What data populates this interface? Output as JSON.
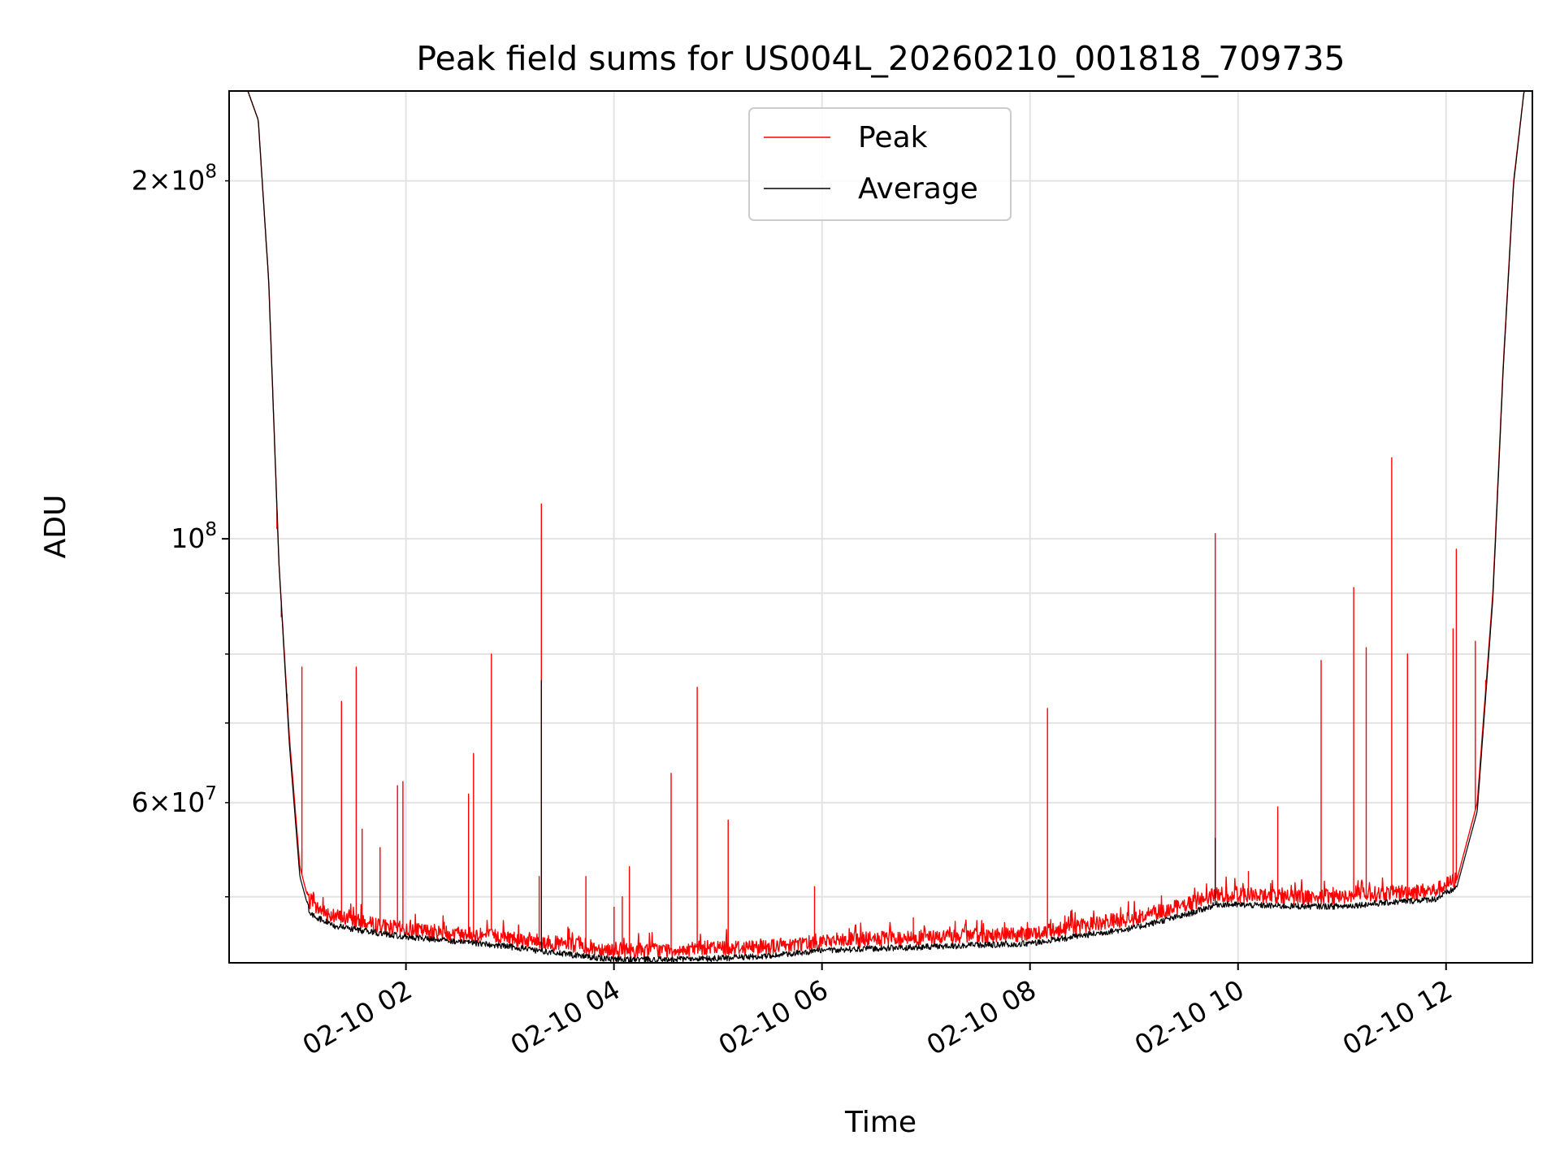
{
  "chart_data": {
    "type": "line",
    "title": "Peak field sums for US004L_20260210_001818_709735",
    "xlabel": "Time",
    "ylabel": "ADU",
    "yscale": "log",
    "ylim": [
      44000000,
      238000000
    ],
    "xlim_hours": [
      0.3,
      12.83
    ],
    "grid": true,
    "legend_position": "top-center",
    "x_ticks": [
      {
        "hour": 2,
        "label": "02-10 02"
      },
      {
        "hour": 4,
        "label": "02-10 04"
      },
      {
        "hour": 6,
        "label": "02-10 06"
      },
      {
        "hour": 8,
        "label": "02-10 08"
      },
      {
        "hour": 10,
        "label": "02-10 10"
      },
      {
        "hour": 12,
        "label": "02-10 12"
      }
    ],
    "y_major_ticks": [
      {
        "value": 100000000,
        "base": "10",
        "exp": "8"
      }
    ],
    "y_minor_ticks": [
      {
        "value": 200000000,
        "mant": "2",
        "base": "10",
        "exp": "8"
      },
      {
        "value": 60000000,
        "mant": "6",
        "base": "10",
        "exp": "7"
      }
    ],
    "y_minor_unlabeled": [
      50000000,
      70000000,
      80000000,
      90000000
    ],
    "series": [
      {
        "name": "Peak",
        "color": "#ff0000",
        "baseline": [
          [
            0.3,
            238000000
          ],
          [
            0.48,
            238000000
          ],
          [
            0.58,
            225000000
          ],
          [
            0.68,
            165000000
          ],
          [
            0.78,
            95000000
          ],
          [
            0.88,
            68000000
          ],
          [
            0.98,
            53000000
          ],
          [
            1.08,
            49000000
          ],
          [
            1.3,
            48000000
          ],
          [
            1.6,
            47300000
          ],
          [
            2.0,
            46700000
          ],
          [
            2.6,
            46300000
          ],
          [
            3.0,
            46000000
          ],
          [
            3.5,
            45400000
          ],
          [
            4.0,
            44900000
          ],
          [
            4.5,
            44900000
          ],
          [
            5.0,
            45100000
          ],
          [
            5.5,
            45200000
          ],
          [
            6.0,
            45700000
          ],
          [
            7.0,
            46000000
          ],
          [
            8.0,
            46300000
          ],
          [
            9.0,
            47800000
          ],
          [
            9.5,
            49000000
          ],
          [
            9.8,
            50000000
          ],
          [
            10.5,
            49800000
          ],
          [
            11.0,
            49800000
          ],
          [
            11.5,
            50200000
          ],
          [
            11.9,
            50400000
          ],
          [
            12.1,
            51500000
          ],
          [
            12.3,
            60000000
          ],
          [
            12.45,
            90000000
          ],
          [
            12.55,
            140000000
          ],
          [
            12.65,
            200000000
          ],
          [
            12.75,
            238000000
          ],
          [
            12.83,
            238000000
          ]
        ],
        "spikes": [
          [
            0.76,
            102000000
          ],
          [
            0.8,
            86000000
          ],
          [
            0.86,
            74000000
          ],
          [
            1.0,
            78000000
          ],
          [
            1.38,
            73000000
          ],
          [
            1.52,
            78000000
          ],
          [
            1.58,
            57000000
          ],
          [
            1.75,
            55000000
          ],
          [
            1.92,
            62000000
          ],
          [
            1.97,
            62500000
          ],
          [
            2.6,
            61000000
          ],
          [
            2.65,
            66000000
          ],
          [
            2.82,
            80000000
          ],
          [
            3.28,
            52000000
          ],
          [
            3.3,
            107000000
          ],
          [
            3.73,
            52000000
          ],
          [
            4.0,
            49000000
          ],
          [
            4.08,
            50000000
          ],
          [
            4.15,
            53000000
          ],
          [
            4.55,
            63500000
          ],
          [
            4.8,
            75000000
          ],
          [
            5.1,
            58000000
          ],
          [
            5.93,
            51000000
          ],
          [
            6.88,
            48000000
          ],
          [
            8.17,
            72000000
          ],
          [
            9.78,
            101000000
          ],
          [
            10.1,
            52500000
          ],
          [
            10.38,
            59500000
          ],
          [
            10.8,
            79000000
          ],
          [
            11.11,
            91000000
          ],
          [
            11.23,
            81000000
          ],
          [
            11.48,
            117000000
          ],
          [
            11.63,
            80000000
          ],
          [
            12.07,
            84000000
          ],
          [
            12.1,
            98000000
          ],
          [
            12.28,
            82000000
          ],
          [
            12.38,
            76000000
          ]
        ]
      },
      {
        "name": "Average",
        "color": "#000000",
        "baseline": [
          [
            0.3,
            238000000
          ],
          [
            0.48,
            238000000
          ],
          [
            0.58,
            225000000
          ],
          [
            0.68,
            165000000
          ],
          [
            0.78,
            95000000
          ],
          [
            0.88,
            67000000
          ],
          [
            0.98,
            52000000
          ],
          [
            1.08,
            48300000
          ],
          [
            1.3,
            47200000
          ],
          [
            1.6,
            46700000
          ],
          [
            2.0,
            46200000
          ],
          [
            2.6,
            45700000
          ],
          [
            3.0,
            45300000
          ],
          [
            3.5,
            44700000
          ],
          [
            4.0,
            44200000
          ],
          [
            4.5,
            44200000
          ],
          [
            5.0,
            44300000
          ],
          [
            5.5,
            44500000
          ],
          [
            6.0,
            45000000
          ],
          [
            7.0,
            45300000
          ],
          [
            8.0,
            45600000
          ],
          [
            9.0,
            47000000
          ],
          [
            9.5,
            48200000
          ],
          [
            9.8,
            49200000
          ],
          [
            10.5,
            49000000
          ],
          [
            11.0,
            49000000
          ],
          [
            11.5,
            49400000
          ],
          [
            11.9,
            49700000
          ],
          [
            12.1,
            50800000
          ],
          [
            12.3,
            59000000
          ],
          [
            12.45,
            89000000
          ],
          [
            12.55,
            139000000
          ],
          [
            12.65,
            199000000
          ],
          [
            12.75,
            238000000
          ],
          [
            12.83,
            238000000
          ]
        ],
        "spikes": [
          [
            3.3,
            76000000
          ],
          [
            9.78,
            56000000
          ]
        ]
      }
    ]
  }
}
